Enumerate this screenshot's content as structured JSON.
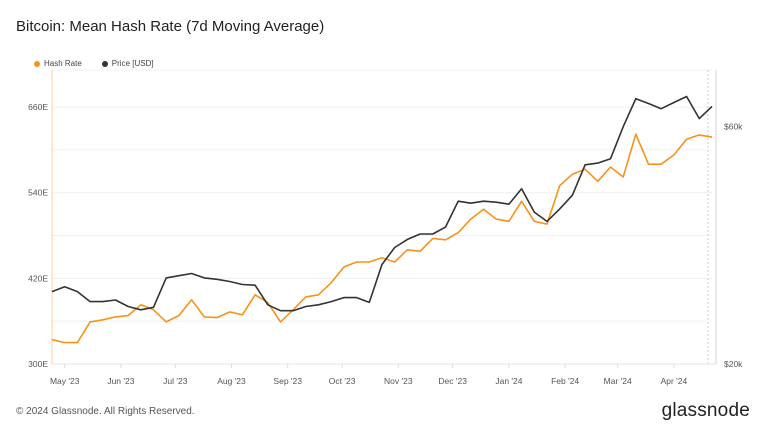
{
  "title": "Bitcoin: Mean Hash Rate (7d Moving Average)",
  "footer": "© 2024 Glassnode. All Rights Reserved.",
  "logo": "glassnode",
  "colors": {
    "hash_rate": "#f7931a",
    "price": "#333333"
  },
  "chart_data": {
    "type": "line",
    "title": "Bitcoin: Mean Hash Rate (7d Moving Average)",
    "legend_position": "top-left",
    "grid": true,
    "x_tick_labels": [
      "May '23",
      "Jun '23",
      "Jul '23",
      "Aug '23",
      "Sep '23",
      "Oct '23",
      "Nov '23",
      "Dec '23",
      "Jan '24",
      "Feb '24",
      "Mar '24",
      "Apr '24"
    ],
    "x_tick_dates": [
      "2023-05-01",
      "2023-06-01",
      "2023-07-01",
      "2023-08-01",
      "2023-09-01",
      "2023-10-01",
      "2023-11-01",
      "2023-12-01",
      "2024-01-01",
      "2024-02-01",
      "2024-03-01",
      "2024-04-01"
    ],
    "xlim": [
      "2023-04-24",
      "2024-04-22"
    ],
    "left_axis": {
      "unit": "EH/s",
      "ylim": [
        300,
        712
      ],
      "ticks": [
        300,
        420,
        540,
        660
      ],
      "tick_labels": [
        "300E",
        "420E",
        "540E",
        "660E"
      ]
    },
    "right_axis": {
      "scale": "log",
      "ylim": [
        20000,
        78000
      ],
      "ticks": [
        20000,
        60000
      ],
      "tick_labels": [
        "$20k",
        "$60k"
      ]
    },
    "x": [
      "2023-04-24",
      "2023-05-01",
      "2023-05-08",
      "2023-05-15",
      "2023-05-22",
      "2023-05-29",
      "2023-06-05",
      "2023-06-12",
      "2023-06-19",
      "2023-06-26",
      "2023-07-03",
      "2023-07-10",
      "2023-07-17",
      "2023-07-24",
      "2023-07-31",
      "2023-08-07",
      "2023-08-14",
      "2023-08-21",
      "2023-08-28",
      "2023-09-04",
      "2023-09-11",
      "2023-09-18",
      "2023-09-25",
      "2023-10-02",
      "2023-10-09",
      "2023-10-16",
      "2023-10-23",
      "2023-10-30",
      "2023-11-06",
      "2023-11-13",
      "2023-11-20",
      "2023-11-27",
      "2023-12-04",
      "2023-12-11",
      "2023-12-18",
      "2023-12-25",
      "2024-01-01",
      "2024-01-08",
      "2024-01-15",
      "2024-01-22",
      "2024-01-29",
      "2024-02-05",
      "2024-02-12",
      "2024-02-19",
      "2024-02-26",
      "2024-03-04",
      "2024-03-11",
      "2024-03-18",
      "2024-03-25",
      "2024-04-01",
      "2024-04-08",
      "2024-04-15",
      "2024-04-22"
    ],
    "series": [
      {
        "name": "Hash Rate",
        "axis": "left",
        "values": [
          334,
          330,
          330,
          359,
          362,
          366,
          368,
          383,
          376,
          359,
          368,
          390,
          366,
          365,
          373,
          369,
          397,
          386,
          359,
          376,
          394,
          397,
          414,
          436,
          443,
          443,
          449,
          443,
          460,
          458,
          476,
          474,
          484,
          503,
          517,
          503,
          500,
          528,
          500,
          496,
          550,
          566,
          573,
          556,
          576,
          562,
          622,
          580,
          580,
          593,
          615,
          621,
          618
        ]
      },
      {
        "name": "Price [USD]",
        "axis": "right",
        "values": [
          27960,
          28600,
          27960,
          26700,
          26700,
          26900,
          26100,
          25700,
          26000,
          29800,
          30100,
          30400,
          29800,
          29600,
          29300,
          28900,
          28800,
          26300,
          25600,
          25600,
          26100,
          26300,
          26700,
          27200,
          27200,
          26600,
          31700,
          34300,
          35600,
          36500,
          36500,
          37700,
          42500,
          42100,
          42500,
          42300,
          41900,
          45000,
          40400,
          38700,
          41000,
          43700,
          50300,
          50700,
          51700,
          60000,
          68300,
          66800,
          65200,
          67100,
          69000,
          62300,
          65900
        ]
      }
    ]
  }
}
